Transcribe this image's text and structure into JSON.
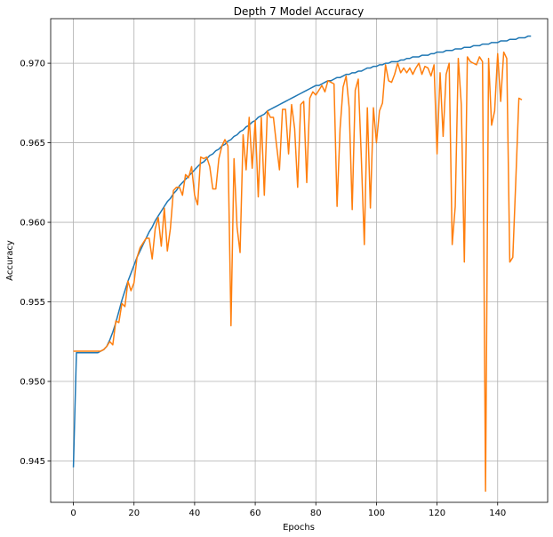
{
  "chart_data": {
    "type": "line",
    "title": "Depth 7 Model Accuracy",
    "xlabel": "Epochs",
    "ylabel": "Accuracy",
    "xlim": [
      -7.5,
      156.5
    ],
    "ylim": [
      0.9424,
      0.9728
    ],
    "xticks": [
      0,
      20,
      40,
      60,
      80,
      100,
      120,
      140
    ],
    "yticks": [
      0.945,
      0.95,
      0.955,
      0.96,
      0.965,
      0.97
    ],
    "xtick_labels": [
      "0",
      "20",
      "40",
      "60",
      "80",
      "100",
      "120",
      "140"
    ],
    "ytick_labels": [
      "0.945",
      "0.950",
      "0.955",
      "0.960",
      "0.965",
      "0.970"
    ],
    "grid": true,
    "legend": "none",
    "series": [
      {
        "color": "#1f77b4",
        "x_start": 0,
        "values": [
          0.9446,
          0.9518,
          0.9518,
          0.9518,
          0.9518,
          0.9518,
          0.9518,
          0.9518,
          0.9518,
          0.9519,
          0.952,
          0.9522,
          0.9526,
          0.9531,
          0.9537,
          0.9544,
          0.9551,
          0.9557,
          0.9563,
          0.9568,
          0.9573,
          0.9578,
          0.9582,
          0.9586,
          0.959,
          0.9594,
          0.9597,
          0.9601,
          0.9604,
          0.9607,
          0.961,
          0.9613,
          0.9615,
          0.9618,
          0.962,
          0.9623,
          0.9625,
          0.9627,
          0.9629,
          0.9631,
          0.9633,
          0.9635,
          0.9637,
          0.9638,
          0.964,
          0.9642,
          0.9643,
          0.9645,
          0.9646,
          0.9648,
          0.9649,
          0.9651,
          0.9652,
          0.9654,
          0.9655,
          0.9657,
          0.9658,
          0.966,
          0.9661,
          0.9663,
          0.9664,
          0.9666,
          0.9667,
          0.9668,
          0.967,
          0.9671,
          0.9672,
          0.9673,
          0.9674,
          0.9675,
          0.9676,
          0.9677,
          0.9678,
          0.9679,
          0.968,
          0.9681,
          0.9682,
          0.9683,
          0.9684,
          0.9685,
          0.9686,
          0.9686,
          0.9687,
          0.9688,
          0.9689,
          0.9689,
          0.969,
          0.9691,
          0.9691,
          0.9692,
          0.9693,
          0.9693,
          0.9694,
          0.9694,
          0.9695,
          0.9695,
          0.9696,
          0.9697,
          0.9697,
          0.9698,
          0.9698,
          0.9699,
          0.9699,
          0.97,
          0.97,
          0.9701,
          0.9701,
          0.9701,
          0.9702,
          0.9702,
          0.9703,
          0.9703,
          0.9704,
          0.9704,
          0.9704,
          0.9705,
          0.9705,
          0.9705,
          0.9706,
          0.9706,
          0.9707,
          0.9707,
          0.9707,
          0.9708,
          0.9708,
          0.9708,
          0.9709,
          0.9709,
          0.9709,
          0.971,
          0.971,
          0.971,
          0.9711,
          0.9711,
          0.9711,
          0.9712,
          0.9712,
          0.9712,
          0.9713,
          0.9713,
          0.9713,
          0.9714,
          0.9714,
          0.9714,
          0.9715,
          0.9715,
          0.9715,
          0.9716,
          0.9716,
          0.9716,
          0.9717,
          0.9717
        ]
      },
      {
        "color": "#ff7f0e",
        "x_start": 0,
        "values": [
          0.9519,
          0.9519,
          0.9519,
          0.9519,
          0.9519,
          0.9519,
          0.9519,
          0.9519,
          0.9519,
          0.9519,
          0.952,
          0.9522,
          0.9525,
          0.9523,
          0.9538,
          0.9537,
          0.9549,
          0.9547,
          0.9563,
          0.9557,
          0.9562,
          0.9578,
          0.9584,
          0.9587,
          0.959,
          0.959,
          0.9577,
          0.9596,
          0.9603,
          0.9585,
          0.9609,
          0.9582,
          0.9596,
          0.962,
          0.9622,
          0.9622,
          0.9617,
          0.963,
          0.9628,
          0.9635,
          0.9617,
          0.9611,
          0.9641,
          0.964,
          0.9641,
          0.9635,
          0.9621,
          0.9621,
          0.964,
          0.9648,
          0.9652,
          0.9648,
          0.9535,
          0.964,
          0.9597,
          0.9581,
          0.9655,
          0.9633,
          0.9666,
          0.9634,
          0.9664,
          0.9616,
          0.9666,
          0.9617,
          0.967,
          0.9666,
          0.9666,
          0.9649,
          0.9633,
          0.9671,
          0.9671,
          0.9643,
          0.9674,
          0.9659,
          0.9622,
          0.9674,
          0.9676,
          0.9625,
          0.9678,
          0.9682,
          0.968,
          0.9683,
          0.9686,
          0.9682,
          0.9689,
          0.9688,
          0.9687,
          0.961,
          0.9659,
          0.9685,
          0.9692,
          0.9672,
          0.9608,
          0.9683,
          0.969,
          0.9641,
          0.9586,
          0.9672,
          0.9609,
          0.9672,
          0.965,
          0.967,
          0.9675,
          0.9699,
          0.9689,
          0.9688,
          0.9693,
          0.97,
          0.9694,
          0.9697,
          0.9694,
          0.9697,
          0.9693,
          0.9697,
          0.97,
          0.9693,
          0.9698,
          0.9697,
          0.9692,
          0.9699,
          0.9643,
          0.9694,
          0.9654,
          0.9693,
          0.97,
          0.9586,
          0.961,
          0.9703,
          0.9674,
          0.9575,
          0.9704,
          0.9701,
          0.97,
          0.9699,
          0.9704,
          0.9701,
          0.9431,
          0.9703,
          0.9661,
          0.967,
          0.9706,
          0.9676,
          0.9707,
          0.9703,
          0.9575,
          0.9578,
          0.9627,
          0.9678,
          0.9677
        ]
      }
    ]
  }
}
